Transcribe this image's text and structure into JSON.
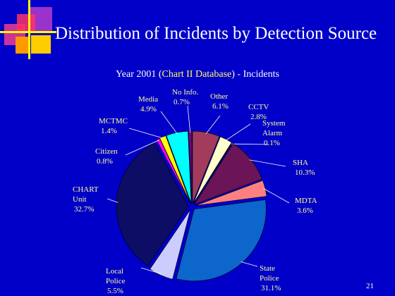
{
  "slide": {
    "title": "Distribution of Incidents by Detection Source",
    "page_number": "21"
  },
  "chart_data": {
    "type": "pie",
    "title_parts": [
      "Year 2001 (",
      "Chart II Database",
      ") - Incidents"
    ],
    "label_color": "#ffff99",
    "slices": [
      {
        "label": "Other",
        "value": 6.1,
        "value_label": "6.1%",
        "color": "#a23b5c"
      },
      {
        "label": "CCTV",
        "value": 2.8,
        "value_label": "2.8%",
        "color": "#ffffcc"
      },
      {
        "label": "System Alarm",
        "value": 0.1,
        "value_label": "0.1%",
        "color": "#ccffff"
      },
      {
        "label": "SHA",
        "value": 10.3,
        "value_label": "10.3%",
        "color": "#6b1457"
      },
      {
        "label": "MDTA",
        "value": 3.6,
        "value_label": "3.6%",
        "color": "#ff8080"
      },
      {
        "label": "State Police",
        "value": 31.1,
        "value_label": "31.1%",
        "color": "#0c66cc"
      },
      {
        "label": "Local Police",
        "value": 5.5,
        "value_label": "5.5%",
        "color": "#ccccff"
      },
      {
        "label": "CHART Unit",
        "value": 32.7,
        "value_label": "32.7%",
        "color": "#0d0d66"
      },
      {
        "label": "Citizen",
        "value": 0.8,
        "value_label": "0.8%",
        "color": "#ff00ff"
      },
      {
        "label": "MCTMC",
        "value": 1.4,
        "value_label": "1.4%",
        "color": "#ffff00"
      },
      {
        "label": "Media",
        "value": 4.9,
        "value_label": "4.9%",
        "color": "#00ffff"
      },
      {
        "label": "No Info.",
        "value": 0.7,
        "value_label": "0.7%",
        "color": "#800080"
      }
    ]
  }
}
